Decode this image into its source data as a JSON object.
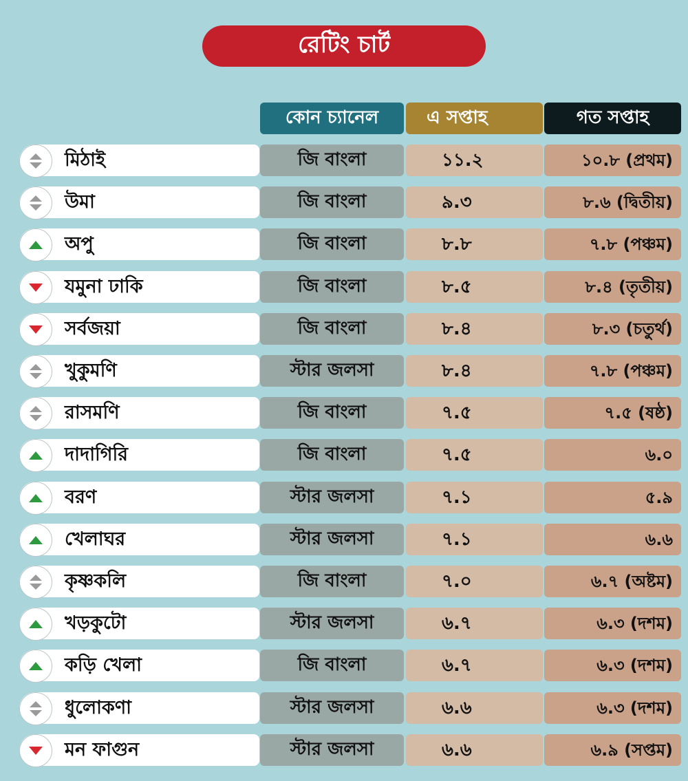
{
  "title": "রেটিং চার্ট",
  "headers": {
    "channel": "কোন চ্যানেল",
    "this_week": "এ সপ্তাহ",
    "last_week": "গত সপ্তাহ"
  },
  "chart_data": {
    "type": "table",
    "title": "রেটিং চার্ট",
    "columns": [
      "",
      "কোন চ্যানেল",
      "এ সপ্তাহ",
      "গত সপ্তাহ"
    ],
    "rows": [
      {
        "trend": "same",
        "show": "মিঠাই",
        "channel": "জি বাংলা",
        "this_week": "১১.২",
        "last_week": "১০.৮ (প্রথম)"
      },
      {
        "trend": "same",
        "show": "উমা",
        "channel": "জি বাংলা",
        "this_week": "৯.৩",
        "last_week": "৮.৬ (দ্বিতীয়)"
      },
      {
        "trend": "up",
        "show": "অপু",
        "channel": "জি বাংলা",
        "this_week": "৮.৮",
        "last_week": "৭.৮ (পঞ্চম)"
      },
      {
        "trend": "down",
        "show": "যমুনা ঢাকি",
        "channel": "জি বাংলা",
        "this_week": "৮.৫",
        "last_week": "৮.৪ (তৃতীয়)"
      },
      {
        "trend": "down",
        "show": "সর্বজয়া",
        "channel": "জি বাংলা",
        "this_week": "৮.৪",
        "last_week": "৮.৩ (চতুর্থ)"
      },
      {
        "trend": "same",
        "show": "খুকুমণি",
        "channel": "স্টার জলসা",
        "this_week": "৮.৪",
        "last_week": "৭.৮ (পঞ্চম)"
      },
      {
        "trend": "same",
        "show": "রাসমণি",
        "channel": "জি বাংলা",
        "this_week": "৭.৫",
        "last_week": "৭.৫ (ষষ্ঠ)"
      },
      {
        "trend": "up",
        "show": "দাদাগিরি",
        "channel": "জি বাংলা",
        "this_week": "৭.৫",
        "last_week": "৬.০"
      },
      {
        "trend": "up",
        "show": "বরণ",
        "channel": "স্টার জলসা",
        "this_week": "৭.১",
        "last_week": "৫.৯"
      },
      {
        "trend": "up",
        "show": "খেলাঘর",
        "channel": "স্টার জলসা",
        "this_week": "৭.১",
        "last_week": "৬.৬"
      },
      {
        "trend": "same",
        "show": "কৃষ্ণকলি",
        "channel": "জি বাংলা",
        "this_week": "৭.০",
        "last_week": "৬.৭ (অষ্টম)"
      },
      {
        "trend": "up",
        "show": "খড়কুটো",
        "channel": "স্টার জলসা",
        "this_week": "৬.৭",
        "last_week": "৬.৩ (দশম)"
      },
      {
        "trend": "up",
        "show": "কড়ি খেলা",
        "channel": "জি বাংলা",
        "this_week": "৬.৭",
        "last_week": "৬.৩ (দশম)"
      },
      {
        "trend": "same",
        "show": "ধুলোকণা",
        "channel": "স্টার জলসা",
        "this_week": "৬.৬",
        "last_week": "৬.৩ (দশম)"
      },
      {
        "trend": "down",
        "show": "মন ফাগুন",
        "channel": "স্টার জলসা",
        "this_week": "৬.৬",
        "last_week": "৬.৯ (সপ্তম)"
      }
    ]
  },
  "colors": {
    "background": "#a9d5db",
    "title": "#c4202b",
    "up": "#2e9a3f",
    "down": "#d9262f",
    "same": "#9a9a9a"
  }
}
